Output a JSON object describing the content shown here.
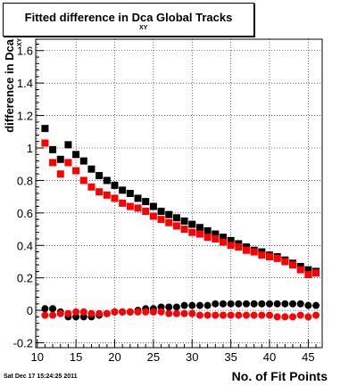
{
  "title_main": "Fitted difference in Dca",
  "title_main_part2": "Global Tracks",
  "title_subscript": "XY",
  "datestamp": "Sat Dec 17 15:24:25 2011",
  "chart_data": {
    "type": "scatter",
    "xlabel": "No. of Fit Points",
    "ylabel": "difference in Dca",
    "ylabel_subscript": "XY",
    "xlim": [
      9.8,
      46.8
    ],
    "ylim": [
      -0.23,
      1.67
    ],
    "xticks": [
      10,
      15,
      20,
      25,
      30,
      35,
      40,
      45
    ],
    "yticks": [
      -0.2,
      0,
      0.2,
      0.4,
      0.6,
      0.8,
      1,
      1.2,
      1.4,
      1.6
    ],
    "ytick_labels": [
      "-0.2",
      "0",
      "0.2",
      "0.4",
      "0.6",
      "0.8",
      "1",
      "1.2",
      "1.4",
      "1.6"
    ],
    "grid": true,
    "colors": {
      "black": "#000000",
      "red": "#ff0000"
    },
    "series": [
      {
        "marker": "square",
        "color": "#000000",
        "x": [
          11,
          12,
          13,
          14,
          15,
          16,
          17,
          18,
          19,
          20,
          21,
          22,
          23,
          24,
          25,
          26,
          27,
          28,
          29,
          30,
          31,
          32,
          33,
          34,
          35,
          36,
          37,
          38,
          39,
          40,
          41,
          42,
          43,
          44,
          45,
          46
        ],
        "y": [
          1.12,
          0.99,
          0.93,
          1.02,
          0.96,
          0.92,
          0.87,
          0.83,
          0.8,
          0.77,
          0.74,
          0.72,
          0.69,
          0.67,
          0.64,
          0.61,
          0.59,
          0.57,
          0.55,
          0.53,
          0.51,
          0.49,
          0.47,
          0.45,
          0.43,
          0.41,
          0.39,
          0.37,
          0.36,
          0.34,
          0.33,
          0.31,
          0.29,
          0.27,
          0.25,
          0.24
        ]
      },
      {
        "marker": "square",
        "color": "#ff0000",
        "x": [
          11,
          12,
          13,
          14,
          15,
          16,
          17,
          18,
          19,
          20,
          21,
          22,
          23,
          24,
          25,
          26,
          27,
          28,
          29,
          30,
          31,
          32,
          33,
          34,
          35,
          36,
          37,
          38,
          39,
          40,
          41,
          42,
          43,
          44,
          45,
          46
        ],
        "y": [
          1.03,
          0.91,
          0.84,
          0.91,
          0.86,
          0.8,
          0.76,
          0.73,
          0.71,
          0.69,
          0.66,
          0.64,
          0.63,
          0.61,
          0.58,
          0.56,
          0.54,
          0.52,
          0.5,
          0.48,
          0.47,
          0.45,
          0.44,
          0.42,
          0.4,
          0.39,
          0.37,
          0.36,
          0.34,
          0.33,
          0.32,
          0.3,
          0.28,
          0.25,
          0.22,
          0.23
        ]
      },
      {
        "marker": "circle",
        "color": "#000000",
        "x": [
          11,
          12,
          13,
          14,
          15,
          16,
          17,
          18,
          19,
          20,
          21,
          22,
          23,
          24,
          25,
          26,
          27,
          28,
          29,
          30,
          31,
          32,
          33,
          34,
          35,
          36,
          37,
          38,
          39,
          40,
          41,
          42,
          43,
          44,
          45,
          46
        ],
        "y": [
          0.01,
          0.01,
          -0.01,
          -0.04,
          -0.04,
          -0.04,
          -0.04,
          -0.03,
          -0.02,
          -0.01,
          -0.01,
          -0.01,
          0.0,
          0.01,
          0.01,
          0.02,
          0.02,
          0.02,
          0.03,
          0.03,
          0.03,
          0.03,
          0.04,
          0.04,
          0.04,
          0.04,
          0.04,
          0.04,
          0.04,
          0.04,
          0.04,
          0.04,
          0.04,
          0.04,
          0.03,
          0.03
        ]
      },
      {
        "marker": "circle",
        "color": "#ff0000",
        "x": [
          11,
          12,
          13,
          14,
          15,
          16,
          17,
          18,
          19,
          20,
          21,
          22,
          23,
          24,
          25,
          26,
          27,
          28,
          29,
          30,
          31,
          32,
          33,
          34,
          35,
          36,
          37,
          38,
          39,
          40,
          41,
          42,
          43,
          44,
          45,
          46
        ],
        "y": [
          -0.03,
          -0.03,
          -0.02,
          -0.02,
          -0.01,
          -0.01,
          -0.02,
          -0.02,
          -0.02,
          -0.01,
          -0.01,
          -0.01,
          -0.01,
          -0.01,
          -0.01,
          -0.01,
          -0.02,
          -0.02,
          -0.02,
          -0.02,
          -0.03,
          -0.03,
          -0.03,
          -0.03,
          -0.03,
          -0.03,
          -0.03,
          -0.03,
          -0.03,
          -0.03,
          -0.04,
          -0.04,
          -0.04,
          -0.03,
          -0.04,
          -0.03
        ]
      }
    ]
  }
}
